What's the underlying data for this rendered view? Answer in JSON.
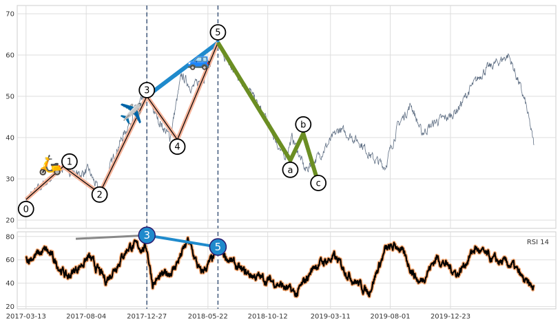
{
  "chart_data": [
    {
      "type": "line",
      "panel": "price",
      "title": "",
      "xlabel": "",
      "ylabel": "",
      "ylim": [
        18,
        72
      ],
      "yticks": [
        20,
        30,
        40,
        50,
        60,
        70
      ],
      "grid": true,
      "x_range": [
        "2017-02-20",
        "2020-08-31"
      ],
      "vlines": [
        "2017-12-27",
        "2018-06-15"
      ],
      "price_anchors": [
        {
          "x": "2017-03-13",
          "y": 25
        },
        {
          "x": "2017-05-10",
          "y": 30
        },
        {
          "x": "2017-06-10",
          "y": 33
        },
        {
          "x": "2017-07-15",
          "y": 31
        },
        {
          "x": "2017-08-10",
          "y": 32
        },
        {
          "x": "2017-09-05",
          "y": 26.5
        },
        {
          "x": "2017-10-20",
          "y": 38
        },
        {
          "x": "2017-12-01",
          "y": 47
        },
        {
          "x": "2017-12-27",
          "y": 50
        },
        {
          "x": "2018-01-25",
          "y": 44
        },
        {
          "x": "2018-02-20",
          "y": 40
        },
        {
          "x": "2018-03-20",
          "y": 55
        },
        {
          "x": "2018-04-15",
          "y": 52
        },
        {
          "x": "2018-05-15",
          "y": 55
        },
        {
          "x": "2018-06-15",
          "y": 63
        },
        {
          "x": "2018-07-15",
          "y": 57
        },
        {
          "x": "2018-08-20",
          "y": 53
        },
        {
          "x": "2018-10-10",
          "y": 44
        },
        {
          "x": "2018-11-20",
          "y": 35
        },
        {
          "x": "2018-12-10",
          "y": 40
        },
        {
          "x": "2019-01-10",
          "y": 32
        },
        {
          "x": "2019-02-15",
          "y": 36
        },
        {
          "x": "2019-04-01",
          "y": 42
        },
        {
          "x": "2019-05-20",
          "y": 39
        },
        {
          "x": "2019-06-20",
          "y": 35
        },
        {
          "x": "2019-07-20",
          "y": 33
        },
        {
          "x": "2019-08-20",
          "y": 43
        },
        {
          "x": "2019-09-20",
          "y": 48
        },
        {
          "x": "2019-10-15",
          "y": 41
        },
        {
          "x": "2019-11-20",
          "y": 44
        },
        {
          "x": "2019-12-20",
          "y": 45
        },
        {
          "x": "2020-01-10",
          "y": 47
        },
        {
          "x": "2020-02-10",
          "y": 52
        },
        {
          "x": "2020-03-10",
          "y": 56
        },
        {
          "x": "2020-04-10",
          "y": 58
        },
        {
          "x": "2020-05-10",
          "y": 60
        },
        {
          "x": "2020-06-01",
          "y": 54
        },
        {
          "x": "2020-06-20",
          "y": 48
        },
        {
          "x": "2020-07-10",
          "y": 38
        }
      ],
      "price_wiggle": 1.8,
      "wave_impulse": [
        {
          "label": "0",
          "x": "2017-03-13",
          "y": 25
        },
        {
          "label": "1",
          "x": "2017-06-10",
          "y": 33
        },
        {
          "label": "2",
          "x": "2017-09-05",
          "y": 26.5
        },
        {
          "label": "3",
          "x": "2017-12-27",
          "y": 50
        },
        {
          "label": "4",
          "x": "2018-03-10",
          "y": 39.5
        },
        {
          "label": "5",
          "x": "2018-06-15",
          "y": 63
        }
      ],
      "wave_impulse_color": "#f5b49b",
      "wave_corrective": [
        {
          "label": "5",
          "x": "2018-06-15",
          "y": 63
        },
        {
          "label": "a",
          "x": "2018-12-05",
          "y": 34.5
        },
        {
          "label": "b",
          "x": "2019-01-05",
          "y": 41
        },
        {
          "label": "c",
          "x": "2019-02-10",
          "y": 29
        }
      ],
      "wave_corrective_color": "#6b8e23",
      "wave_degree": [
        {
          "x": "2017-12-27",
          "y": 50
        },
        {
          "x": "2018-06-15",
          "y": 63
        }
      ],
      "wave_degree_color": "#1f8acc",
      "label_placements": [
        {
          "label": "0",
          "x": "2017-03-13",
          "y": 22.7
        },
        {
          "label": "1",
          "x": "2017-06-25",
          "y": 34.2
        },
        {
          "label": "2",
          "x": "2017-09-05",
          "y": 26.2
        },
        {
          "label": "3",
          "x": "2017-12-27",
          "y": 51.5
        },
        {
          "label": "4",
          "x": "2018-03-10",
          "y": 37.8
        },
        {
          "label": "5",
          "x": "2018-06-15",
          "y": 65.5
        },
        {
          "label": "a",
          "x": "2018-12-05",
          "y": 32.2
        },
        {
          "label": "b",
          "x": "2019-01-05",
          "y": 43.2
        },
        {
          "label": "c",
          "x": "2019-02-10",
          "y": 29
        }
      ],
      "icons": [
        {
          "name": "scooter-icon",
          "glyph": "🛵",
          "x": "2017-05-10",
          "y": 33.5
        },
        {
          "name": "airplane-icon",
          "glyph": "✈️",
          "x": "2017-11-20",
          "y": 46
        },
        {
          "name": "car-icon",
          "glyph": "🚙",
          "x": "2018-05-01",
          "y": 59
        }
      ]
    },
    {
      "type": "line",
      "panel": "rsi",
      "legend": "RSI 14",
      "legend_placement": "top-right",
      "ylim": [
        18,
        84
      ],
      "yticks": [
        20,
        40,
        60,
        80
      ],
      "grid": true,
      "x_ticks": [
        "2017-03-13",
        "2017-08-04",
        "2017-12-27",
        "2018-05-22",
        "2018-10-12",
        "2019-03-11",
        "2019-08-01",
        "2019-12-23"
      ],
      "rsi_anchors": [
        {
          "x": "2017-03-13",
          "y": 60
        },
        {
          "x": "2017-05-01",
          "y": 68
        },
        {
          "x": "2017-06-20",
          "y": 45
        },
        {
          "x": "2017-08-10",
          "y": 62
        },
        {
          "x": "2017-09-20",
          "y": 42
        },
        {
          "x": "2017-11-15",
          "y": 72
        },
        {
          "x": "2017-12-27",
          "y": 70
        },
        {
          "x": "2018-01-10",
          "y": 40
        },
        {
          "x": "2018-03-01",
          "y": 52
        },
        {
          "x": "2018-04-05",
          "y": 76
        },
        {
          "x": "2018-05-05",
          "y": 48
        },
        {
          "x": "2018-06-20",
          "y": 68
        },
        {
          "x": "2018-08-10",
          "y": 50
        },
        {
          "x": "2018-09-20",
          "y": 45
        },
        {
          "x": "2018-11-05",
          "y": 40
        },
        {
          "x": "2018-12-20",
          "y": 30
        },
        {
          "x": "2019-02-01",
          "y": 55
        },
        {
          "x": "2019-03-20",
          "y": 62
        },
        {
          "x": "2019-05-01",
          "y": 45
        },
        {
          "x": "2019-06-10",
          "y": 32
        },
        {
          "x": "2019-07-20",
          "y": 68
        },
        {
          "x": "2019-08-20",
          "y": 72
        },
        {
          "x": "2019-10-10",
          "y": 40
        },
        {
          "x": "2019-11-20",
          "y": 62
        },
        {
          "x": "2020-01-10",
          "y": 48
        },
        {
          "x": "2020-02-20",
          "y": 70
        },
        {
          "x": "2020-04-01",
          "y": 60
        },
        {
          "x": "2020-05-20",
          "y": 55
        },
        {
          "x": "2020-06-20",
          "y": 40
        },
        {
          "x": "2020-07-10",
          "y": 35
        }
      ],
      "rsi_wiggle": 9,
      "rsi_line_color": "#000000",
      "rsi_glow_color": "#f5a66e",
      "rsi_markers": [
        {
          "label": "3",
          "x": "2017-12-27",
          "y": 81
        },
        {
          "label": "5",
          "x": "2018-06-15",
          "y": 71
        }
      ],
      "rsi_marker_color": "#1f8acc",
      "rsi_ref_line": {
        "from": {
          "x": "2017-07-10",
          "y": 78
        },
        "to": {
          "x": "2017-12-27",
          "y": 81
        }
      }
    }
  ]
}
